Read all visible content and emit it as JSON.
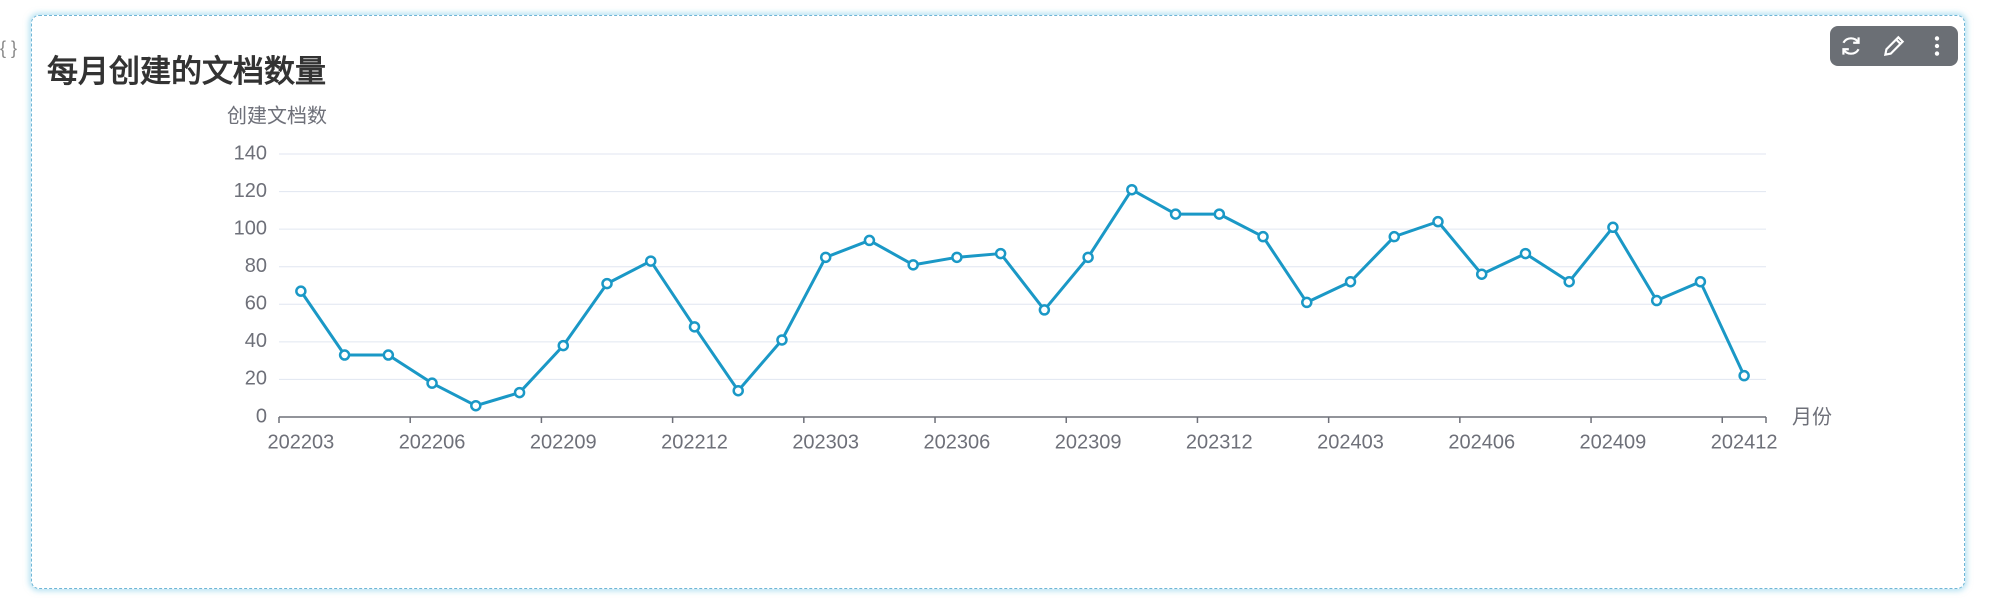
{
  "corner_label": "{ }",
  "chart_data": {
    "type": "line",
    "title": "每月创建的文档数量",
    "y_label": "创建文档数",
    "x_label": "月份",
    "categories": [
      "202203",
      null,
      null,
      "202206",
      null,
      null,
      "202209",
      null,
      null,
      "202212",
      null,
      null,
      "202303",
      null,
      null,
      "202306",
      null,
      null,
      "202309",
      null,
      null,
      "202312",
      null,
      null,
      "202403",
      null,
      null,
      "202406",
      null,
      null,
      "202409",
      null,
      null,
      "202412"
    ],
    "values": [
      67,
      33,
      33,
      18,
      6,
      13,
      38,
      71,
      83,
      48,
      14,
      41,
      85,
      94,
      81,
      85,
      87,
      57,
      85,
      121,
      108,
      108,
      96,
      61,
      72,
      96,
      104,
      76,
      87,
      72,
      101,
      62,
      72,
      22
    ],
    "color": "#1a98c6",
    "ylim": [
      0,
      140
    ],
    "yticks": [
      0,
      20,
      40,
      60,
      80,
      100,
      120,
      140
    ],
    "grid": true
  }
}
